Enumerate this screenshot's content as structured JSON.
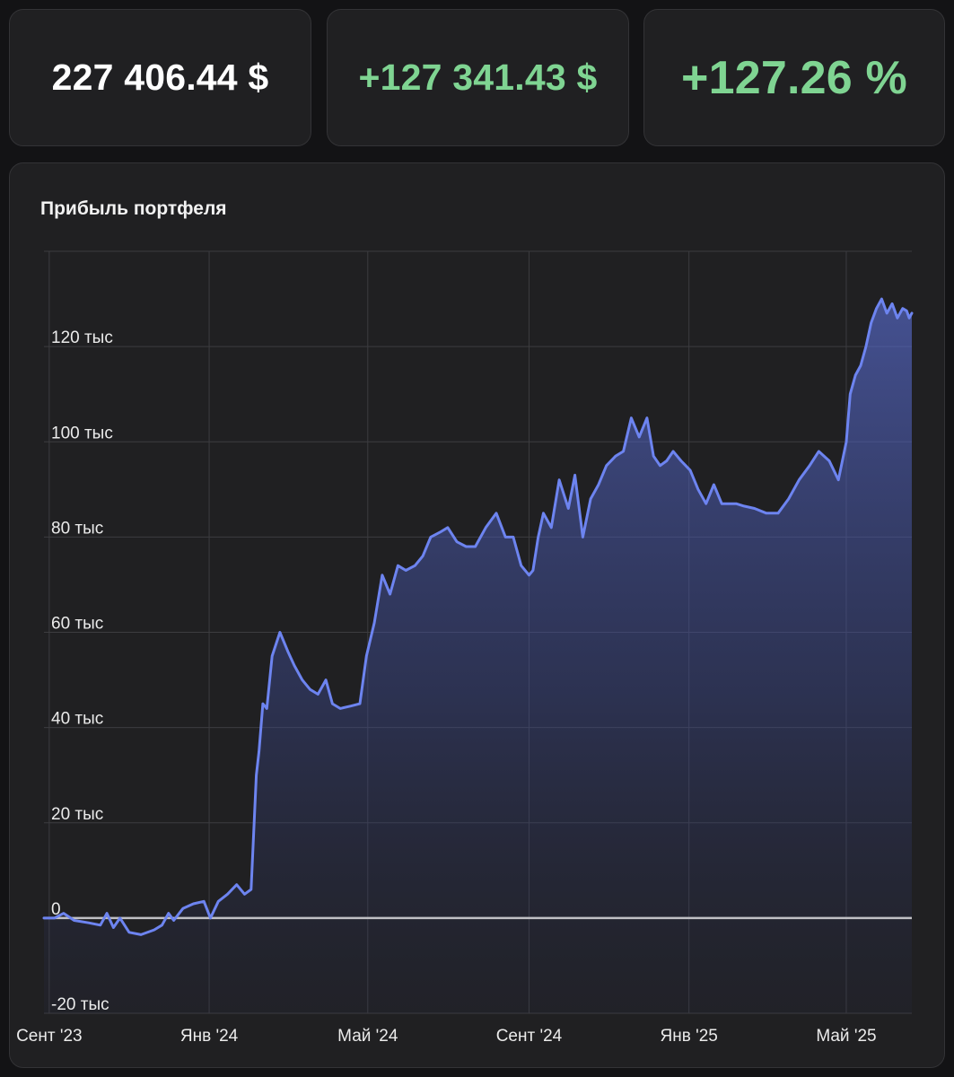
{
  "summary": {
    "total_value": "227 406.44 $",
    "profit_abs": "+127 341.43 $",
    "profit_pct": "+127.26 %"
  },
  "colors": {
    "background": "#131315",
    "card": "#202022",
    "text": "#ffffff",
    "positive": "#7fd492",
    "line": "#6d84f0",
    "grid": "#3c3c40",
    "zero_line": "#c0c0c4"
  },
  "chart_data": {
    "type": "area",
    "title": "Прибыль портфеля",
    "xlabel": "",
    "ylabel": "",
    "ylim": [
      -20000,
      140000
    ],
    "xlim": [
      "2023-08-28",
      "2025-06-20"
    ],
    "grid": true,
    "legend": "none",
    "y_ticks": [
      {
        "value": -20000,
        "label": "-20 тыс"
      },
      {
        "value": 0,
        "label": "0"
      },
      {
        "value": 20000,
        "label": "20 тыс"
      },
      {
        "value": 40000,
        "label": "40 тыс"
      },
      {
        "value": 60000,
        "label": "60 тыс"
      },
      {
        "value": 80000,
        "label": "80 тыс"
      },
      {
        "value": 100000,
        "label": "100 тыс"
      },
      {
        "value": 120000,
        "label": "120 тыс"
      }
    ],
    "x_ticks": [
      {
        "date": "2023-09-01",
        "label": "Сент '23"
      },
      {
        "date": "2024-01-01",
        "label": "Янв '24"
      },
      {
        "date": "2024-05-01",
        "label": "Май '24"
      },
      {
        "date": "2024-09-01",
        "label": "Сент '24"
      },
      {
        "date": "2025-01-01",
        "label": "Янв '25"
      },
      {
        "date": "2025-05-01",
        "label": "Май '25"
      }
    ],
    "x": [
      "2023-08-28",
      "2023-09-05",
      "2023-09-12",
      "2023-09-20",
      "2023-10-01",
      "2023-10-10",
      "2023-10-15",
      "2023-10-20",
      "2023-10-25",
      "2023-11-01",
      "2023-11-10",
      "2023-11-20",
      "2023-11-26",
      "2023-12-01",
      "2023-12-05",
      "2023-12-12",
      "2023-12-20",
      "2023-12-28",
      "2024-01-02",
      "2024-01-08",
      "2024-01-15",
      "2024-01-22",
      "2024-01-28",
      "2024-02-02",
      "2024-02-06",
      "2024-02-08",
      "2024-02-11",
      "2024-02-14",
      "2024-02-18",
      "2024-02-24",
      "2024-03-01",
      "2024-03-06",
      "2024-03-12",
      "2024-03-18",
      "2024-03-24",
      "2024-03-30",
      "2024-04-04",
      "2024-04-10",
      "2024-04-18",
      "2024-04-25",
      "2024-04-30",
      "2024-05-06",
      "2024-05-12",
      "2024-05-18",
      "2024-05-24",
      "2024-05-30",
      "2024-06-06",
      "2024-06-12",
      "2024-06-18",
      "2024-06-25",
      "2024-07-01",
      "2024-07-08",
      "2024-07-15",
      "2024-07-22",
      "2024-07-30",
      "2024-08-07",
      "2024-08-14",
      "2024-08-20",
      "2024-08-26",
      "2024-09-01",
      "2024-09-04",
      "2024-09-08",
      "2024-09-12",
      "2024-09-18",
      "2024-09-24",
      "2024-10-01",
      "2024-10-06",
      "2024-10-12",
      "2024-10-18",
      "2024-10-24",
      "2024-10-30",
      "2024-11-06",
      "2024-11-12",
      "2024-11-18",
      "2024-11-24",
      "2024-11-30",
      "2024-12-05",
      "2024-12-10",
      "2024-12-15",
      "2024-12-20",
      "2024-12-26",
      "2025-01-02",
      "2025-01-08",
      "2025-01-14",
      "2025-01-20",
      "2025-01-26",
      "2025-02-01",
      "2025-02-06",
      "2025-02-12",
      "2025-02-20",
      "2025-03-01",
      "2025-03-10",
      "2025-03-18",
      "2025-03-26",
      "2025-04-03",
      "2025-04-10",
      "2025-04-18",
      "2025-04-25",
      "2025-05-01",
      "2025-05-04",
      "2025-05-08",
      "2025-05-12",
      "2025-05-16",
      "2025-05-20",
      "2025-05-24",
      "2025-05-28",
      "2025-06-01",
      "2025-06-05",
      "2025-06-09",
      "2025-06-13",
      "2025-06-16",
      "2025-06-18",
      "2025-06-20"
    ],
    "series": [
      {
        "values": [
          0,
          0,
          1000,
          -500,
          -1000,
          -1500,
          1000,
          -2000,
          0,
          -3000,
          -3500,
          -2500,
          -1500,
          1000,
          -500,
          2000,
          3000,
          3500,
          0,
          3500,
          5000,
          7000,
          5000,
          6000,
          30000,
          35000,
          45000,
          44000,
          55000,
          60000,
          56000,
          53000,
          50000,
          48000,
          47000,
          50000,
          45000,
          44000,
          44500,
          45000,
          55000,
          62000,
          72000,
          68000,
          74000,
          73000,
          74000,
          76000,
          80000,
          81000,
          82000,
          79000,
          78000,
          78000,
          82000,
          85000,
          80000,
          80000,
          74000,
          72000,
          73000,
          80000,
          85000,
          82000,
          92000,
          86000,
          93000,
          80000,
          88000,
          91000,
          95000,
          97000,
          98000,
          105000,
          101000,
          105000,
          97000,
          95000,
          96000,
          98000,
          96000,
          94000,
          90000,
          87000,
          91000,
          87000,
          87000,
          87000,
          86500,
          86000,
          85000,
          85000,
          88000,
          92000,
          95000,
          98000,
          96000,
          92000,
          100000,
          110000,
          114000,
          116000,
          120000,
          125000,
          128000,
          130000,
          127000,
          129000,
          126000,
          128000,
          127500,
          126000,
          127000
        ]
      }
    ]
  }
}
